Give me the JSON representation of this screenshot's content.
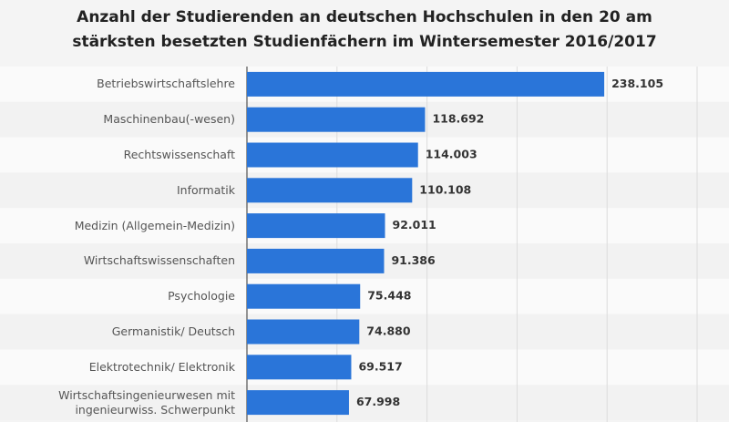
{
  "chart_data": {
    "type": "bar",
    "orientation": "horizontal",
    "title": "Anzahl der Studierenden an deutschen Hochschulen in den 20 am stärksten besetzten Studienfächern im Wintersemester 2016/2017",
    "categories": [
      "Betriebswirtschaftslehre",
      "Maschinenbau(-wesen)",
      "Rechtswissenschaft",
      "Informatik",
      "Medizin (Allgemein-Medizin)",
      "Wirtschaftswissenschaften",
      "Psychologie",
      "Germanistik/ Deutsch",
      "Elektrotechnik/ Elektronik",
      "Wirtschaftsingenieurwesen mit ingenieurwiss. Schwerpunkt"
    ],
    "values": [
      238105,
      118692,
      114003,
      110108,
      92011,
      91386,
      75448,
      74880,
      69517,
      67998
    ],
    "value_labels": [
      "238.105",
      "118.692",
      "114.003",
      "110.108",
      "92.011",
      "91.386",
      "75.448",
      "74.880",
      "69.517",
      "67.998"
    ],
    "color": "#2a75d9",
    "xlim": [
      0,
      300000
    ],
    "xticks": [
      0,
      60000,
      120000,
      180000,
      240000,
      300000
    ],
    "grid": true
  }
}
